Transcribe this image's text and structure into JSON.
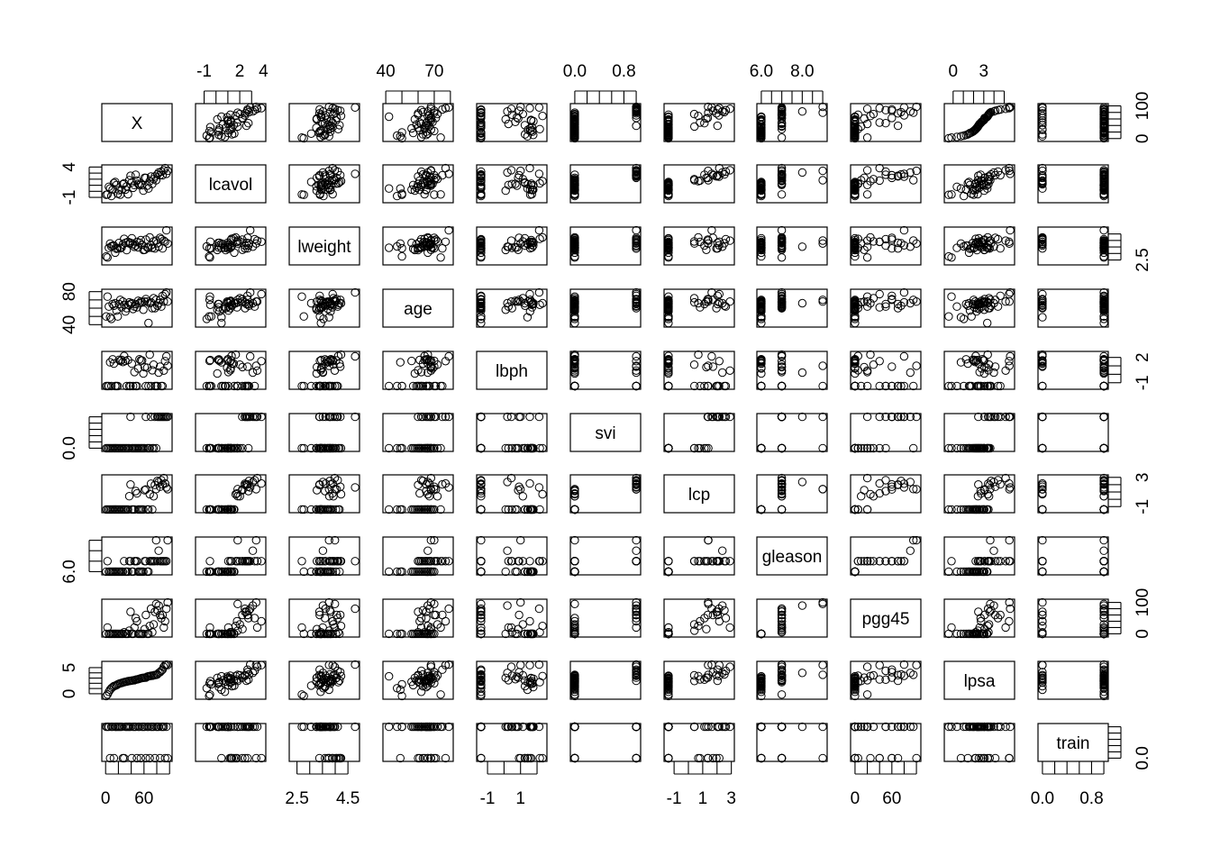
{
  "chart_data": {
    "type": "scatter",
    "subtype": "scatterplot-matrix",
    "variables": [
      "X",
      "lcavol",
      "lweight",
      "age",
      "lbph",
      "svi",
      "lcp",
      "gleason",
      "pgg45",
      "lpsa",
      "train"
    ],
    "ranges": {
      "X": [
        1,
        97
      ],
      "lcavol": [
        -1.35,
        3.82
      ],
      "lweight": [
        2.37,
        4.78
      ],
      "age": [
        41,
        79
      ],
      "lbph": [
        -1.39,
        2.33
      ],
      "svi": [
        0,
        1
      ],
      "lcp": [
        -1.39,
        2.9
      ],
      "gleason": [
        6,
        9
      ],
      "pgg45": [
        0,
        100
      ],
      "lpsa": [
        -0.43,
        5.58
      ],
      "train": [
        0,
        1
      ]
    },
    "axis_ticks": {
      "top": [
        {
          "var": "lcavol",
          "ticks": [
            -1,
            0,
            1,
            2,
            3
          ],
          "labels": [
            "-1",
            "2",
            "4"
          ],
          "label_values": [
            -1,
            2,
            4
          ]
        },
        {
          "var": "age",
          "ticks": [
            40,
            50,
            60,
            70,
            80
          ],
          "labels": [
            "40",
            "70"
          ],
          "label_values": [
            40,
            70
          ]
        },
        {
          "var": "svi",
          "ticks": [
            0,
            0.2,
            0.4,
            0.6,
            0.8,
            1.0
          ],
          "labels": [
            "0.0",
            "0.8"
          ],
          "label_values": [
            0,
            0.8
          ]
        },
        {
          "var": "gleason",
          "ticks": [
            6,
            6.5,
            7,
            7.5,
            8,
            8.5,
            9
          ],
          "labels": [
            "6.0",
            "8.0"
          ],
          "label_values": [
            6,
            8
          ]
        },
        {
          "var": "lpsa",
          "ticks": [
            0,
            1,
            2,
            3,
            4,
            5
          ],
          "labels": [
            "0",
            "3"
          ],
          "label_values": [
            0,
            3
          ]
        }
      ],
      "bottom": [
        {
          "var": "X",
          "ticks": [
            0,
            20,
            40,
            60,
            80,
            100
          ],
          "labels": [
            "0",
            "60"
          ],
          "label_values": [
            0,
            60
          ]
        },
        {
          "var": "lweight",
          "ticks": [
            2.5,
            3,
            3.5,
            4,
            4.5
          ],
          "labels": [
            "2.5",
            "4.5"
          ],
          "label_values": [
            2.5,
            4.5
          ]
        },
        {
          "var": "lbph",
          "ticks": [
            -1,
            0,
            1,
            2
          ],
          "labels": [
            "-1",
            "1"
          ],
          "label_values": [
            -1,
            1
          ]
        },
        {
          "var": "lcp",
          "ticks": [
            -1,
            0,
            1,
            2,
            3
          ],
          "labels": [
            "-1",
            "1",
            "3"
          ],
          "label_values": [
            -1,
            1,
            3
          ]
        },
        {
          "var": "pgg45",
          "ticks": [
            0,
            20,
            40,
            60,
            80,
            100
          ],
          "labels": [
            "0",
            "60"
          ],
          "label_values": [
            0,
            60
          ]
        },
        {
          "var": "train",
          "ticks": [
            0,
            0.2,
            0.4,
            0.6,
            0.8,
            1.0
          ],
          "labels": [
            "0.0",
            "0.8"
          ],
          "label_values": [
            0,
            0.8
          ]
        }
      ],
      "left": [
        {
          "var": "lcavol",
          "ticks": [
            -1,
            0,
            1,
            2,
            3,
            4
          ],
          "labels": [
            "-1",
            "4"
          ],
          "label_values": [
            -1,
            4
          ]
        },
        {
          "var": "age",
          "ticks": [
            40,
            50,
            60,
            70,
            80
          ],
          "labels": [
            "40",
            "80"
          ],
          "label_values": [
            40,
            80
          ]
        },
        {
          "var": "svi",
          "ticks": [
            0,
            0.2,
            0.4,
            0.6,
            0.8,
            1.0
          ],
          "labels": [
            "0.0"
          ],
          "label_values": [
            0
          ]
        },
        {
          "var": "gleason",
          "ticks": [
            6,
            7,
            8,
            9
          ],
          "labels": [
            "6.0"
          ],
          "label_values": [
            6
          ]
        },
        {
          "var": "lpsa",
          "ticks": [
            0,
            1,
            2,
            3,
            4,
            5
          ],
          "labels": [
            "0",
            "5"
          ],
          "label_values": [
            0,
            5
          ]
        }
      ],
      "right": [
        {
          "var": "X",
          "ticks": [
            0,
            20,
            40,
            60,
            80,
            100
          ],
          "labels": [
            "0",
            "100"
          ],
          "label_values": [
            0,
            100
          ]
        },
        {
          "var": "lweight",
          "ticks": [
            2.5,
            3,
            3.5,
            4,
            4.5
          ],
          "labels": [
            "2.5"
          ],
          "label_values": [
            2.5
          ]
        },
        {
          "var": "lbph",
          "ticks": [
            -1,
            0,
            1,
            2
          ],
          "labels": [
            "-1",
            "2"
          ],
          "label_values": [
            -1,
            2
          ]
        },
        {
          "var": "lcp",
          "ticks": [
            -1,
            0,
            1,
            2,
            3
          ],
          "labels": [
            "-1",
            "3"
          ],
          "label_values": [
            -1,
            3
          ]
        },
        {
          "var": "pgg45",
          "ticks": [
            0,
            20,
            40,
            60,
            80,
            100
          ],
          "labels": [
            "0",
            "100"
          ],
          "label_values": [
            0,
            100
          ]
        },
        {
          "var": "train",
          "ticks": [
            0,
            0.2,
            0.4,
            0.6,
            0.8,
            1.0
          ],
          "labels": [
            "0.0"
          ],
          "label_values": [
            0
          ]
        }
      ]
    },
    "point_marker": "open-circle",
    "grid": false,
    "legend": "none",
    "observations": [
      {
        "X": 1,
        "lcavol": -0.58,
        "lweight": 2.77,
        "age": 50,
        "lbph": -1.39,
        "svi": 0,
        "lcp": -1.39,
        "gleason": 6,
        "pgg45": 0,
        "lpsa": -0.43,
        "train": 1
      },
      {
        "X": 3,
        "lcavol": -0.51,
        "lweight": 2.69,
        "age": 74,
        "lbph": -1.39,
        "svi": 0,
        "lcp": -1.39,
        "gleason": 7,
        "pgg45": 20,
        "lpsa": -0.16,
        "train": 1
      },
      {
        "X": 5,
        "lcavol": 0.75,
        "lweight": 3.43,
        "age": 62,
        "lbph": -1.39,
        "svi": 0,
        "lcp": -1.39,
        "gleason": 6,
        "pgg45": 0,
        "lpsa": 0.37,
        "train": 1
      },
      {
        "X": 7,
        "lcavol": 0.46,
        "lweight": 3.76,
        "age": 49,
        "lbph": 1.42,
        "svi": 0,
        "lcp": -1.39,
        "gleason": 6,
        "pgg45": 0,
        "lpsa": 0.77,
        "train": 0
      },
      {
        "X": 9,
        "lcavol": -0.78,
        "lweight": 3.54,
        "age": 47,
        "lbph": -1.39,
        "svi": 0,
        "lcp": -1.39,
        "gleason": 6,
        "pgg45": 0,
        "lpsa": 1.05,
        "train": 1
      },
      {
        "X": 11,
        "lcavol": 0.25,
        "lweight": 3.6,
        "age": 65,
        "lbph": 1.77,
        "svi": 0,
        "lcp": -1.39,
        "gleason": 6,
        "pgg45": 0,
        "lpsa": 1.27,
        "train": 1
      },
      {
        "X": 13,
        "lcavol": 1.35,
        "lweight": 3.6,
        "age": 63,
        "lbph": 1.27,
        "svi": 0,
        "lcp": -1.39,
        "gleason": 6,
        "pgg45": 0,
        "lpsa": 1.45,
        "train": 0
      },
      {
        "X": 15,
        "lcavol": 1.54,
        "lweight": 3.06,
        "age": 66,
        "lbph": -1.39,
        "svi": 0,
        "lcp": -1.39,
        "gleason": 6,
        "pgg45": 0,
        "lpsa": 1.56,
        "train": 1
      },
      {
        "X": 17,
        "lcavol": 1.04,
        "lweight": 3.36,
        "age": 57,
        "lbph": -1.39,
        "svi": 0,
        "lcp": -1.39,
        "gleason": 6,
        "pgg45": 0,
        "lpsa": 1.65,
        "train": 1
      },
      {
        "X": 19,
        "lcavol": -0.4,
        "lweight": 3.4,
        "age": 50,
        "lbph": -1.39,
        "svi": 0,
        "lcp": -1.39,
        "gleason": 6,
        "pgg45": 0,
        "lpsa": 1.8,
        "train": 1
      },
      {
        "X": 21,
        "lcavol": 0.18,
        "lweight": 3.81,
        "age": 65,
        "lbph": 1.72,
        "svi": 0,
        "lcp": -1.39,
        "gleason": 6,
        "pgg45": 0,
        "lpsa": 1.92,
        "train": 1
      },
      {
        "X": 23,
        "lcavol": -0.54,
        "lweight": 3.4,
        "age": 70,
        "lbph": 1.59,
        "svi": 0,
        "lcp": -1.39,
        "gleason": 6,
        "pgg45": 0,
        "lpsa": 2.01,
        "train": 1
      },
      {
        "X": 25,
        "lcavol": 0.23,
        "lweight": 3.46,
        "age": 61,
        "lbph": 1.7,
        "svi": 0,
        "lcp": -1.39,
        "gleason": 6,
        "pgg45": 0,
        "lpsa": 2.08,
        "train": 1
      },
      {
        "X": 27,
        "lcavol": 1.16,
        "lweight": 3.7,
        "age": 68,
        "lbph": 1.45,
        "svi": 0,
        "lcp": -1.39,
        "gleason": 6,
        "pgg45": 0,
        "lpsa": 2.16,
        "train": 0
      },
      {
        "X": 29,
        "lcavol": 1.31,
        "lweight": 4.12,
        "age": 64,
        "lbph": 2.17,
        "svi": 0,
        "lcp": -1.39,
        "gleason": 7,
        "pgg45": 5,
        "lpsa": 2.21,
        "train": 0
      },
      {
        "X": 31,
        "lcavol": 0.29,
        "lweight": 3.82,
        "age": 56,
        "lbph": 1.58,
        "svi": 0,
        "lcp": -1.39,
        "gleason": 6,
        "pgg45": 0,
        "lpsa": 2.28,
        "train": 1
      },
      {
        "X": 33,
        "lcavol": 0.82,
        "lweight": 3.26,
        "age": 60,
        "lbph": -1.39,
        "svi": 0,
        "lcp": -1.39,
        "gleason": 6,
        "pgg45": 0,
        "lpsa": 2.33,
        "train": 1
      },
      {
        "X": 35,
        "lcavol": -0.48,
        "lweight": 3.9,
        "age": 64,
        "lbph": 1.69,
        "svi": 0,
        "lcp": -1.39,
        "gleason": 6,
        "pgg45": 0,
        "lpsa": 2.4,
        "train": 1
      },
      {
        "X": 37,
        "lcavol": 1.83,
        "lweight": 3.77,
        "age": 67,
        "lbph": -1.39,
        "svi": 0,
        "lcp": 0.42,
        "gleason": 7,
        "pgg45": 10,
        "lpsa": 2.43,
        "train": 1
      },
      {
        "X": 39,
        "lcavol": 2.56,
        "lweight": 3.82,
        "age": 65,
        "lbph": -1.39,
        "svi": 1,
        "lcp": 2.03,
        "gleason": 7,
        "pgg45": 70,
        "lpsa": 2.47,
        "train": 1
      },
      {
        "X": 41,
        "lcavol": 1.49,
        "lweight": 4.17,
        "age": 66,
        "lbph": 1.26,
        "svi": 0,
        "lcp": -1.39,
        "gleason": 6,
        "pgg45": 0,
        "lpsa": 2.52,
        "train": 0
      },
      {
        "X": 43,
        "lcavol": 0.58,
        "lweight": 3.72,
        "age": 59,
        "lbph": -1.39,
        "svi": 0,
        "lcp": -1.39,
        "gleason": 6,
        "pgg45": 0,
        "lpsa": 2.56,
        "train": 1
      },
      {
        "X": 45,
        "lcavol": 1.04,
        "lweight": 3.51,
        "age": 62,
        "lbph": 0.27,
        "svi": 0,
        "lcp": -1.39,
        "gleason": 7,
        "pgg45": 20,
        "lpsa": 2.59,
        "train": 1
      },
      {
        "X": 47,
        "lcavol": 2.73,
        "lweight": 3.6,
        "age": 65,
        "lbph": -1.39,
        "svi": 0,
        "lcp": 1.12,
        "gleason": 7,
        "pgg45": 50,
        "lpsa": 2.69,
        "train": 1
      },
      {
        "X": 49,
        "lcavol": 1.77,
        "lweight": 3.89,
        "age": 61,
        "lbph": -1.39,
        "svi": 0,
        "lcp": 0.81,
        "gleason": 7,
        "pgg45": 40,
        "lpsa": 2.73,
        "train": 0
      },
      {
        "X": 51,
        "lcavol": 1.24,
        "lweight": 3.47,
        "age": 69,
        "lbph": 0.69,
        "svi": 0,
        "lcp": -1.39,
        "gleason": 6,
        "pgg45": 0,
        "lpsa": 2.79,
        "train": 1
      },
      {
        "X": 53,
        "lcavol": 1.0,
        "lweight": 3.83,
        "age": 66,
        "lbph": 1.78,
        "svi": 0,
        "lcp": -1.39,
        "gleason": 6,
        "pgg45": 0,
        "lpsa": 2.87,
        "train": 1
      },
      {
        "X": 55,
        "lcavol": 1.26,
        "lweight": 4.03,
        "age": 68,
        "lbph": 1.65,
        "svi": 0,
        "lcp": -1.39,
        "gleason": 6,
        "pgg45": 0,
        "lpsa": 2.96,
        "train": 0
      },
      {
        "X": 57,
        "lcavol": 0.99,
        "lweight": 3.67,
        "age": 67,
        "lbph": 1.63,
        "svi": 0,
        "lcp": -1.39,
        "gleason": 6,
        "pgg45": 0,
        "lpsa": 3.03,
        "train": 1
      },
      {
        "X": 59,
        "lcavol": 0.11,
        "lweight": 3.27,
        "age": 58,
        "lbph": 0.1,
        "svi": 0,
        "lcp": -1.39,
        "gleason": 6,
        "pgg45": 0,
        "lpsa": 3.04,
        "train": 1
      },
      {
        "X": 61,
        "lcavol": 2.23,
        "lweight": 3.28,
        "age": 68,
        "lbph": 0.86,
        "svi": 0,
        "lcp": 1.25,
        "gleason": 7,
        "pgg45": 15,
        "lpsa": 3.08,
        "train": 1
      },
      {
        "X": 63,
        "lcavol": 2.21,
        "lweight": 4.06,
        "age": 71,
        "lbph": -1.39,
        "svi": 1,
        "lcp": 1.35,
        "gleason": 7,
        "pgg45": 60,
        "lpsa": 3.08,
        "train": 0
      },
      {
        "X": 65,
        "lcavol": 0.94,
        "lweight": 3.46,
        "age": 68,
        "lbph": 0.78,
        "svi": 0,
        "lcp": -1.39,
        "gleason": 6,
        "pgg45": 0,
        "lpsa": 3.28,
        "train": 1
      },
      {
        "X": 67,
        "lcavol": 0.46,
        "lweight": 3.44,
        "age": 42,
        "lbph": -1.39,
        "svi": 0,
        "lcp": -1.39,
        "gleason": 6,
        "pgg45": 0,
        "lpsa": 3.34,
        "train": 1
      },
      {
        "X": 69,
        "lcavol": 1.66,
        "lweight": 4.23,
        "age": 66,
        "lbph": 2.33,
        "svi": 0,
        "lcp": 0.69,
        "gleason": 7,
        "pgg45": 25,
        "lpsa": 3.39,
        "train": 0
      },
      {
        "X": 71,
        "lcavol": 2.43,
        "lweight": 3.62,
        "age": 67,
        "lbph": -1.39,
        "svi": 1,
        "lcp": 2.14,
        "gleason": 7,
        "pgg45": 80,
        "lpsa": 3.43,
        "train": 1
      },
      {
        "X": 73,
        "lcavol": 1.21,
        "lweight": 3.44,
        "age": 60,
        "lbph": 0.48,
        "svi": 0,
        "lcp": -1.39,
        "gleason": 7,
        "pgg45": 5,
        "lpsa": 3.46,
        "train": 1
      },
      {
        "X": 75,
        "lcavol": 2.01,
        "lweight": 3.93,
        "age": 72,
        "lbph": 1.14,
        "svi": 0,
        "lcp": 0.41,
        "gleason": 7,
        "pgg45": 30,
        "lpsa": 3.52,
        "train": 1
      },
      {
        "X": 77,
        "lcavol": 2.45,
        "lweight": 3.38,
        "age": 60,
        "lbph": -1.39,
        "svi": 1,
        "lcp": 1.96,
        "gleason": 7,
        "pgg45": 70,
        "lpsa": 3.57,
        "train": 0
      },
      {
        "X": 79,
        "lcavol": 1.83,
        "lweight": 3.99,
        "age": 70,
        "lbph": -1.39,
        "svi": 0,
        "lcp": 1.39,
        "gleason": 9,
        "pgg45": 95,
        "lpsa": 3.63,
        "train": 1
      },
      {
        "X": 81,
        "lcavol": 2.78,
        "lweight": 3.79,
        "age": 63,
        "lbph": -1.39,
        "svi": 1,
        "lcp": 2.52,
        "gleason": 7,
        "pgg45": 75,
        "lpsa": 3.71,
        "train": 1
      },
      {
        "X": 83,
        "lcavol": 3.1,
        "lweight": 3.52,
        "age": 66,
        "lbph": 0.2,
        "svi": 1,
        "lcp": 2.37,
        "gleason": 8,
        "pgg45": 90,
        "lpsa": 3.99,
        "train": 1
      },
      {
        "X": 85,
        "lcavol": 2.66,
        "lweight": 4.2,
        "age": 70,
        "lbph": 0.91,
        "svi": 1,
        "lcp": 1.72,
        "gleason": 7,
        "pgg45": 60,
        "lpsa": 4.13,
        "train": 0
      },
      {
        "X": 87,
        "lcavol": 3.25,
        "lweight": 4.1,
        "age": 62,
        "lbph": -1.39,
        "svi": 1,
        "lcp": 2.61,
        "gleason": 7,
        "pgg45": 50,
        "lpsa": 4.39,
        "train": 1
      },
      {
        "X": 89,
        "lcavol": 2.65,
        "lweight": 3.39,
        "age": 75,
        "lbph": -1.39,
        "svi": 1,
        "lcp": 2.04,
        "gleason": 7,
        "pgg45": 60,
        "lpsa": 4.62,
        "train": 1
      },
      {
        "X": 91,
        "lcavol": 3.47,
        "lweight": 3.98,
        "age": 68,
        "lbph": 0.44,
        "svi": 1,
        "lcp": 2.9,
        "gleason": 7,
        "pgg45": 20,
        "lpsa": 5.14,
        "train": 1
      },
      {
        "X": 93,
        "lcavol": 3.82,
        "lweight": 3.9,
        "age": 77,
        "lbph": 1.56,
        "svi": 1,
        "lcp": 2.16,
        "gleason": 7,
        "pgg45": 40,
        "lpsa": 5.48,
        "train": 0
      },
      {
        "X": 95,
        "lcavol": 2.88,
        "lweight": 4.78,
        "age": 79,
        "lbph": 2.13,
        "svi": 1,
        "lcp": 1.63,
        "gleason": 7,
        "pgg45": 80,
        "lpsa": 5.58,
        "train": 1
      },
      {
        "X": 97,
        "lcavol": 3.38,
        "lweight": 3.76,
        "age": 68,
        "lbph": 1.0,
        "svi": 1,
        "lcp": 1.38,
        "gleason": 9,
        "pgg45": 100,
        "lpsa": 5.5,
        "train": 0
      }
    ]
  }
}
